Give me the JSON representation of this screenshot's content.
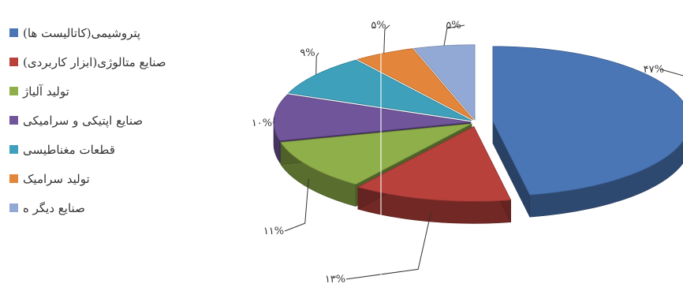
{
  "chart_data": {
    "type": "pie",
    "style": "3d-exploded",
    "title": "",
    "legend_position": "left",
    "slices": [
      {
        "label": "پتروشیمی(کاتالیست ها)",
        "value": 47,
        "display": "۴۷%",
        "color": "#4A76B5"
      },
      {
        "label": "صنایع متالوژی(ابزار کاربردی)",
        "value": 13,
        "display": "۱۳%",
        "color": "#B8413C"
      },
      {
        "label": "تولید آلیاژ",
        "value": 11,
        "display": "۱۱%",
        "color": "#8FAF4A"
      },
      {
        "label": "صنایع اپتیکی و سرامیکی",
        "value": 10,
        "display": "۱۰%",
        "color": "#70559B"
      },
      {
        "label": "قطعات مغناطیسی",
        "value": 9,
        "display": "۹%",
        "color": "#3EA0BA"
      },
      {
        "label": "تولید سرامیک",
        "value": 5,
        "display": "۵%",
        "color": "#E3853A"
      },
      {
        "label": "صنایع دیگر ه",
        "value": 5,
        "display": "۵%",
        "color": "#93A9D5"
      }
    ]
  }
}
